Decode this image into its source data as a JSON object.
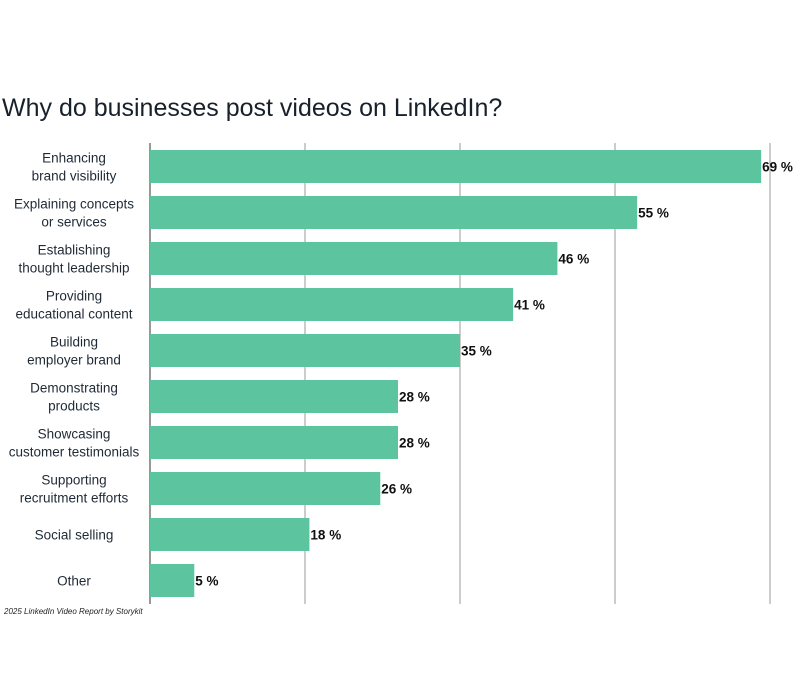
{
  "chart_data": {
    "type": "bar",
    "orientation": "horizontal",
    "title": "Why do businesses post videos on LinkedIn?",
    "categories": [
      [
        "Enhancing",
        "brand visibility"
      ],
      [
        "Explaining concepts",
        "or services"
      ],
      [
        "Establishing",
        "thought leadership"
      ],
      [
        "Providing",
        "educational content"
      ],
      [
        "Building",
        "employer brand"
      ],
      [
        "Demonstrating",
        "products"
      ],
      [
        "Showcasing",
        "customer testimonials"
      ],
      [
        "Supporting",
        "recruitment efforts"
      ],
      [
        "Social selling"
      ],
      [
        "Other"
      ]
    ],
    "values": [
      69,
      55,
      46,
      41,
      35,
      28,
      28,
      26,
      18,
      5
    ],
    "value_labels": [
      "69 %",
      "55 %",
      "46 %",
      "41 %",
      "35 %",
      "28 %",
      "28 %",
      "26 %",
      "18 %",
      "5 %"
    ],
    "xlim": [
      0,
      70
    ],
    "grid": true,
    "colors": {
      "bar": "#5cc59f"
    }
  },
  "source_note": "2025 LinkedIn Video Report by Storykit"
}
